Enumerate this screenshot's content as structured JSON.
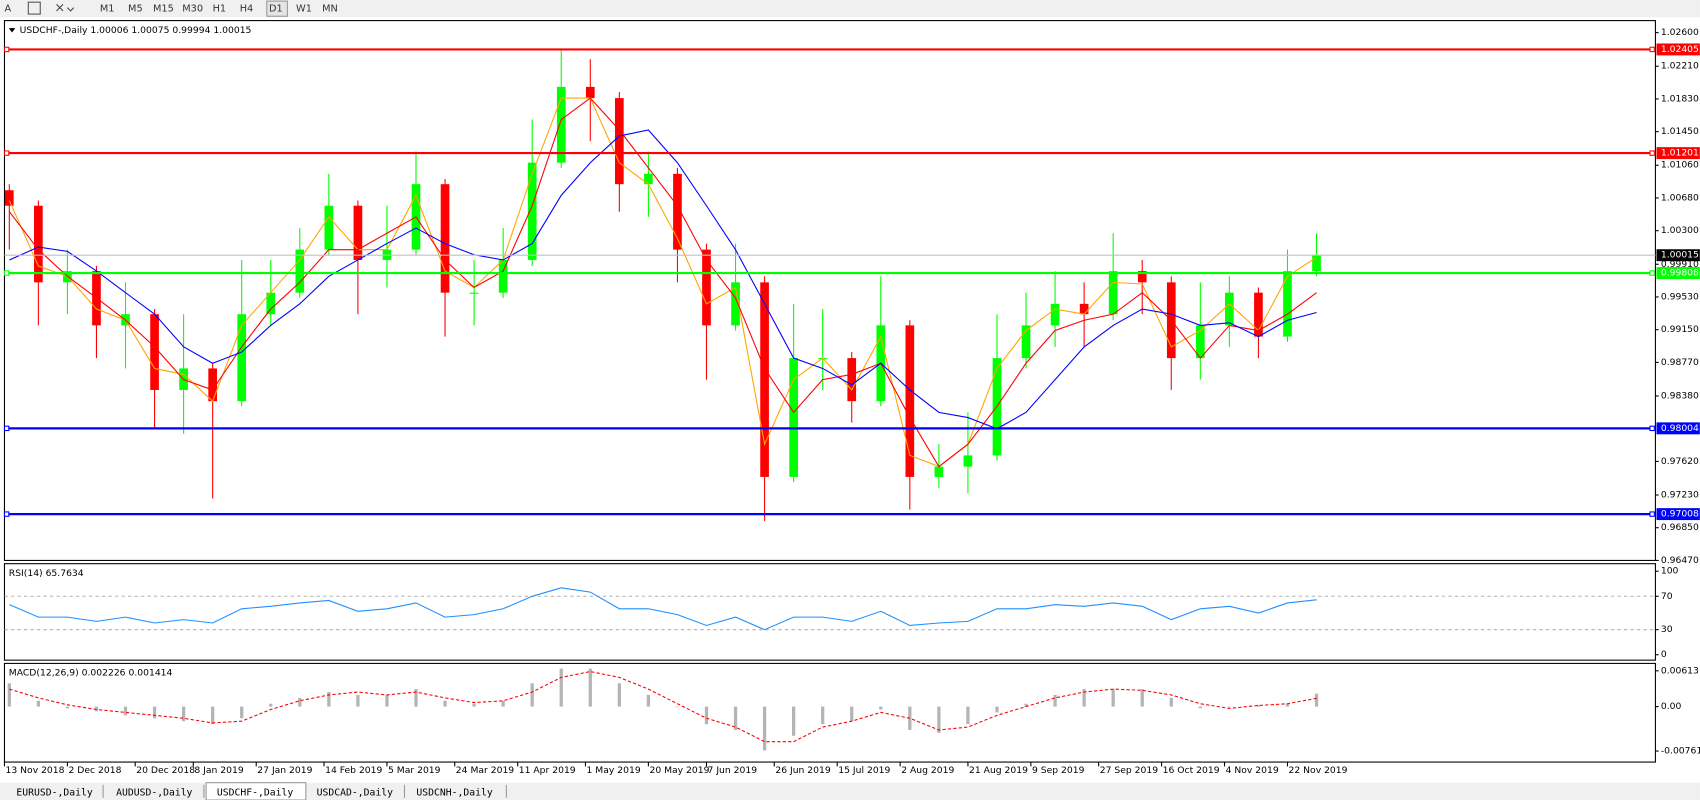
{
  "toolbar": {
    "tools": [
      "A"
    ],
    "timeframes": [
      "M1",
      "M5",
      "M15",
      "M30",
      "H1",
      "H4",
      "D1",
      "W1",
      "MN"
    ]
  },
  "tabs": [
    "EURUSD-,Daily",
    "AUDUSD-,Daily",
    "USDCHF-,Daily",
    "USDCAD-,Daily",
    "USDCNH-,Daily"
  ],
  "chart_data": [
    {
      "type": "candlestick",
      "title": "USDCHF-,Daily  1.00006 1.00075 0.99994 1.00015",
      "x": [
        1,
        7,
        13,
        19,
        25,
        31,
        37,
        43,
        49,
        55,
        61,
        67,
        73,
        79,
        85,
        91,
        97,
        103,
        109,
        115,
        121,
        127,
        133,
        139,
        145,
        151,
        157,
        163,
        169,
        175,
        181,
        187,
        193,
        199,
        205,
        211,
        217,
        223,
        229,
        235,
        241,
        247,
        253,
        259,
        265,
        271
      ],
      "open": [
        1.0077,
        1.0059,
        0.997,
        0.9983,
        0.992,
        0.9933,
        0.9845,
        0.987,
        0.9832,
        0.9933,
        0.9958,
        1.0008,
        1.0059,
        0.9996,
        1.0008,
        1.0084,
        0.9958,
        0.9958,
        0.9996,
        1.0109,
        1.0197,
        1.0184,
        1.0084,
        1.0096,
        1.0008,
        0.992,
        0.997,
        0.9744,
        0.9882,
        0.9882,
        0.9832,
        0.992,
        0.9744,
        0.9756,
        0.9769,
        0.9882,
        0.992,
        0.9945,
        0.9933,
        0.9983,
        0.997,
        0.9882,
        0.992,
        0.9958,
        0.9907,
        0.9983
      ],
      "high": [
        1.0084,
        1.0065,
        1.0008,
        0.9989,
        0.997,
        0.9939,
        0.9933,
        0.9876,
        0.9996,
        0.9996,
        1.0033,
        1.0096,
        1.0065,
        1.0059,
        1.0122,
        1.009,
        0.9996,
        1.0033,
        1.0159,
        1.0241,
        1.0229,
        1.0191,
        1.0122,
        1.0103,
        1.0015,
        1.0015,
        0.9977,
        0.9945,
        0.9939,
        0.9889,
        0.9977,
        0.9926,
        0.9782,
        0.9819,
        0.9933,
        0.9958,
        0.9983,
        0.997,
        1.0027,
        0.9996,
        0.9977,
        0.997,
        0.9977,
        0.9964,
        1.0008,
        1.0027
      ],
      "low": [
        1.0008,
        0.992,
        0.9933,
        0.9882,
        0.987,
        0.98,
        0.9794,
        0.9719,
        0.9826,
        0.992,
        0.9952,
        1.0002,
        0.9933,
        0.9964,
        1.0002,
        0.9907,
        0.992,
        0.9952,
        0.9989,
        1.0103,
        1.0134,
        1.0052,
        1.0046,
        0.997,
        0.9857,
        0.9914,
        0.9693,
        0.9738,
        0.9845,
        0.9807,
        0.9826,
        0.9706,
        0.9731,
        0.9725,
        0.9763,
        0.987,
        0.9895,
        0.9895,
        0.9926,
        0.9933,
        0.9845,
        0.9857,
        0.9895,
        0.9882,
        0.9901,
        0.9977
      ],
      "close": [
        1.0059,
        0.997,
        0.9983,
        0.992,
        0.9933,
        0.9845,
        0.987,
        0.9832,
        0.9933,
        0.9958,
        1.0008,
        1.0059,
        0.9996,
        1.0008,
        1.0084,
        0.9958,
        0.9958,
        0.9996,
        1.0109,
        1.0197,
        1.0184,
        1.0084,
        1.0096,
        1.0008,
        0.992,
        0.997,
        0.9744,
        0.9882,
        0.9882,
        0.9832,
        0.992,
        0.9744,
        0.9756,
        0.9769,
        0.9882,
        0.992,
        0.9945,
        0.9933,
        0.9983,
        0.997,
        0.9882,
        0.992,
        0.9958,
        0.9907,
        0.9983,
        1.00015
      ],
      "up_color": "#00ff00",
      "down_color": "#ff0000",
      "series": [
        {
          "color": "#ffa500",
          "values": [
            1.0065,
            0.9989,
            0.9977,
            0.9939,
            0.9926,
            0.987,
            0.9863,
            0.9832,
            0.992,
            0.9958,
            0.9996,
            1.0046,
            1.0008,
            1.0008,
            1.0071,
            0.9983,
            0.9964,
            0.9996,
            1.0096,
            1.0184,
            1.0184,
            1.0109,
            1.0084,
            1.0021,
            0.9945,
            0.9964,
            0.9782,
            0.9857,
            0.9882,
            0.9845,
            0.9907,
            0.9769,
            0.9756,
            0.9782,
            0.987,
            0.9914,
            0.9939,
            0.9933,
            0.997,
            0.9968,
            0.9895,
            0.9914,
            0.9945,
            0.9914,
            0.9977,
            0.9999
          ]
        },
        {
          "color": "#ff0000",
          "values": [
            1.0052,
            1.0008,
            0.9977,
            0.9952,
            0.9926,
            0.9895,
            0.9857,
            0.9845,
            0.9895,
            0.9939,
            0.997,
            1.0008,
            1.0008,
            1.0027,
            1.0046,
            0.9996,
            0.9964,
            0.9983,
            1.0059,
            1.0159,
            1.0184,
            1.0147,
            1.0103,
            1.0059,
            0.9996,
            0.9952,
            0.987,
            0.9819,
            0.9857,
            0.9863,
            0.9876,
            0.9813,
            0.9756,
            0.9782,
            0.9826,
            0.9876,
            0.9914,
            0.9926,
            0.9933,
            0.9958,
            0.9926,
            0.9882,
            0.992,
            0.9914,
            0.9933,
            0.9958
          ]
        },
        {
          "color": "#0000ff",
          "values": [
            0.9996,
            1.0011,
            1.0006,
            0.9983,
            0.9958,
            0.9933,
            0.9895,
            0.9876,
            0.9889,
            0.992,
            0.9945,
            0.9977,
            0.9996,
            1.0015,
            1.0033,
            1.0015,
            1.0002,
            0.9996,
            1.0015,
            1.0071,
            1.0109,
            1.014,
            1.0147,
            1.0109,
            1.0059,
            1.0008,
            0.9945,
            0.9882,
            0.987,
            0.9851,
            0.9876,
            0.9845,
            0.9819,
            0.9813,
            0.98,
            0.9819,
            0.9857,
            0.9895,
            0.992,
            0.9939,
            0.9933,
            0.992,
            0.9923,
            0.9907,
            0.9926,
            0.9935
          ]
        }
      ],
      "levels": [
        {
          "value": 1.02405,
          "color": "#ff0000"
        },
        {
          "value": 1.01201,
          "color": "#ff0000"
        },
        {
          "value": 0.99808,
          "color": "#00ff00"
        },
        {
          "value": 0.98004,
          "color": "#0000ff"
        },
        {
          "value": 0.97008,
          "color": "#0000ff"
        }
      ],
      "current_price": 1.00015,
      "xlim": [
        0,
        341
      ],
      "ylim": [
        0.9647,
        1.0274
      ],
      "yticks": [
        {
          "value": 1.026,
          "label": "1.02600"
        },
        {
          "value": 1.0221,
          "label": "1.02210"
        },
        {
          "value": 1.0183,
          "label": "1.01830"
        },
        {
          "value": 1.0145,
          "label": "1.01450"
        },
        {
          "value": 1.0106,
          "label": "1.01060"
        },
        {
          "value": 1.0068,
          "label": "1.00680"
        },
        {
          "value": 1.003,
          "label": "1.00300"
        },
        {
          "value": 0.9991,
          "label": "0.99910"
        },
        {
          "value": 0.9953,
          "label": "0.99530"
        },
        {
          "value": 0.9915,
          "label": "0.99150"
        },
        {
          "value": 0.9877,
          "label": "0.98770"
        },
        {
          "value": 0.9838,
          "label": "0.98380"
        },
        {
          "value": 0.9762,
          "label": "0.97620"
        },
        {
          "value": 0.9723,
          "label": "0.97230"
        },
        {
          "value": 0.9685,
          "label": "0.96850"
        },
        {
          "value": 0.9647,
          "label": "0.96470"
        }
      ],
      "xticks": [
        {
          "value": 0,
          "label": "13 Nov 2018"
        },
        {
          "value": 13,
          "label": "2 Dec 2018"
        },
        {
          "value": 27,
          "label": "20 Dec 2018"
        },
        {
          "value": 39,
          "label": "8 Jan 2019"
        },
        {
          "value": 52,
          "label": "27 Jan 2019"
        },
        {
          "value": 66,
          "label": "14 Feb 2019"
        },
        {
          "value": 79,
          "label": "5 Mar 2019"
        },
        {
          "value": 93,
          "label": "24 Mar 2019"
        },
        {
          "value": 106,
          "label": "11 Apr 2019"
        },
        {
          "value": 120,
          "label": "1 May 2019"
        },
        {
          "value": 133,
          "label": "20 May 2019"
        },
        {
          "value": 145,
          "label": "7 Jun 2019"
        },
        {
          "value": 159,
          "label": "26 Jun 2019"
        },
        {
          "value": 172,
          "label": "15 Jul 2019"
        },
        {
          "value": 185,
          "label": "2 Aug 2019"
        },
        {
          "value": 199,
          "label": "21 Aug 2019"
        },
        {
          "value": 212,
          "label": "9 Sep 2019"
        },
        {
          "value": 226,
          "label": "27 Sep 2019"
        },
        {
          "value": 239,
          "label": "16 Oct 2019"
        },
        {
          "value": 252,
          "label": "4 Nov 2019"
        },
        {
          "value": 265,
          "label": "22 Nov 2019"
        }
      ]
    },
    {
      "type": "line",
      "title": "RSI(14) 65.7634",
      "series": [
        {
          "color": "#1e90ff",
          "values": [
            60,
            45,
            45,
            40,
            45,
            38,
            42,
            38,
            55,
            58,
            62,
            65,
            52,
            55,
            62,
            45,
            48,
            55,
            70,
            80,
            75,
            55,
            55,
            48,
            35,
            45,
            30,
            45,
            45,
            40,
            52,
            35,
            38,
            40,
            55,
            55,
            60,
            58,
            62,
            58,
            42,
            55,
            58,
            50,
            62,
            65.7634
          ]
        }
      ],
      "levels": [
        30,
        70
      ],
      "ylim": [
        -6.5,
        109
      ],
      "yticks": [
        0,
        30,
        70,
        100
      ]
    },
    {
      "type": "macd",
      "title": "MACD(12,26,9) 0.002226 0.001414",
      "series": [
        {
          "color": "#b4b4b4",
          "values": [
            0.004,
            0.001,
            -0.0003,
            -0.0008,
            -0.0015,
            -0.002,
            -0.0025,
            -0.003,
            -0.002,
            0.0005,
            0.0015,
            0.0025,
            0.002,
            0.002,
            0.003,
            0.001,
            0.0005,
            0.001,
            0.004,
            0.0065,
            0.0065,
            0.004,
            0.002,
            0,
            -0.003,
            -0.004,
            -0.0075,
            -0.005,
            -0.003,
            -0.0025,
            -0.0005,
            -0.004,
            -0.0045,
            -0.003,
            -0.001,
            0.0005,
            0.002,
            0.003,
            0.003,
            0.003,
            0.0015,
            -0.0003,
            0,
            0.0003,
            0.0005,
            0.002226
          ]
        },
        {
          "color": "#ff0000",
          "dashed": true,
          "values": [
            0.003,
            0.0015,
            0.0003,
            -0.0005,
            -0.001,
            -0.0015,
            -0.002,
            -0.0028,
            -0.0025,
            -0.0005,
            0.001,
            0.002,
            0.0025,
            0.002,
            0.0025,
            0.0015,
            0.0007,
            0.001,
            0.0025,
            0.005,
            0.006,
            0.005,
            0.003,
            0.0005,
            -0.002,
            -0.0035,
            -0.006,
            -0.006,
            -0.0035,
            -0.0025,
            -0.001,
            -0.002,
            -0.004,
            -0.0035,
            -0.0015,
            0,
            0.0015,
            0.0025,
            0.003,
            0.0028,
            0.002,
            0.0005,
            -0.0003,
            0.0002,
            0.0005,
            0.001414
          ]
        }
      ],
      "ylim": [
        -0.0095,
        0.0074
      ],
      "yticks": [
        0.00613,
        {
          "value": 0,
          "label": "0.00"
        },
        -0.007612
      ]
    }
  ]
}
